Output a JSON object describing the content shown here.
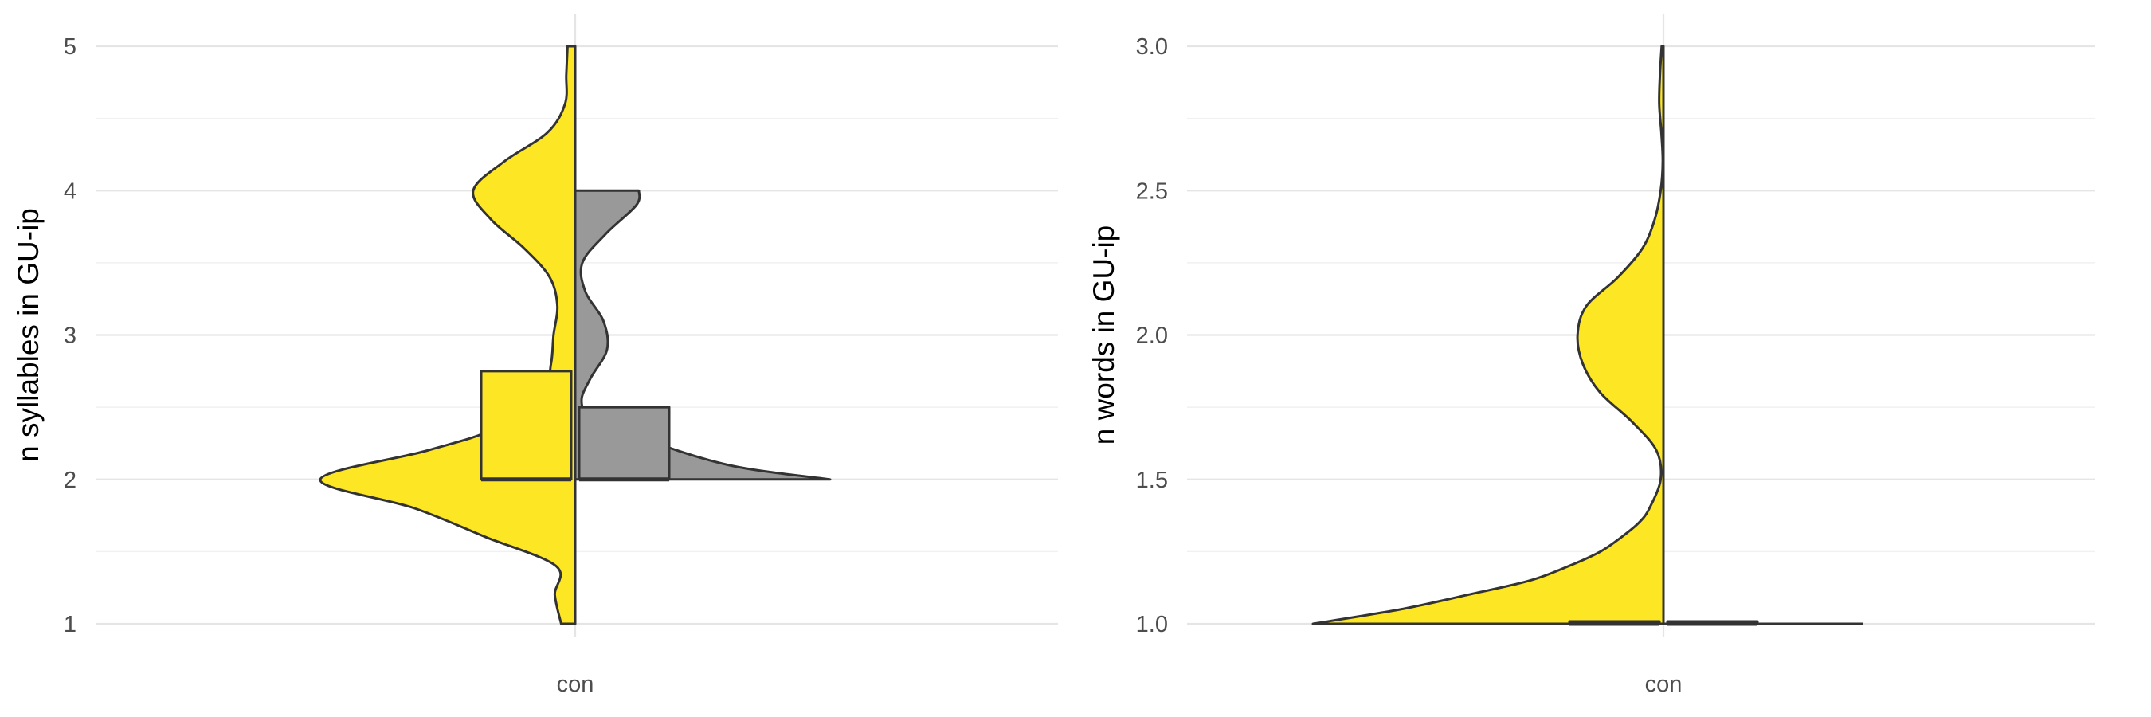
{
  "colors": {
    "yellow": "#FDE725",
    "gray": "#999999",
    "outline": "#333333"
  },
  "chart_data": [
    {
      "type": "violin",
      "title": "",
      "xlabel": "",
      "ylabel": "n syllables in GU-ip",
      "categories": [
        "con"
      ],
      "ylim": [
        1,
        5
      ],
      "yticks": [
        "1",
        "2",
        "3",
        "4",
        "5"
      ],
      "grid": true,
      "legend": "none",
      "series": [
        {
          "side": "left",
          "color": "yellow",
          "density": [
            [
              1.0,
              0.055
            ],
            [
              1.2,
              0.08
            ],
            [
              1.4,
              0.075
            ],
            [
              1.6,
              0.35
            ],
            [
              1.8,
              0.63
            ],
            [
              2.0,
              1.0
            ],
            [
              2.2,
              0.58
            ],
            [
              2.35,
              0.32
            ],
            [
              2.6,
              0.13
            ],
            [
              2.8,
              0.095
            ],
            [
              3.0,
              0.085
            ],
            [
              3.2,
              0.07
            ],
            [
              3.4,
              0.1
            ],
            [
              3.6,
              0.2
            ],
            [
              3.8,
              0.33
            ],
            [
              4.0,
              0.4
            ],
            [
              4.2,
              0.28
            ],
            [
              4.4,
              0.11
            ],
            [
              4.6,
              0.04
            ],
            [
              4.8,
              0.035
            ],
            [
              5.0,
              0.03
            ]
          ],
          "box": {
            "q1": 2,
            "median": 2,
            "q3": 2.75
          }
        },
        {
          "side": "right",
          "color": "gray",
          "density": [
            [
              2.0,
              1.0
            ],
            [
              2.1,
              0.6
            ],
            [
              2.3,
              0.24
            ],
            [
              2.45,
              0.06
            ],
            [
              2.55,
              0.025
            ],
            [
              2.7,
              0.06
            ],
            [
              2.9,
              0.125
            ],
            [
              3.1,
              0.11
            ],
            [
              3.3,
              0.04
            ],
            [
              3.5,
              0.028
            ],
            [
              3.7,
              0.12
            ],
            [
              3.9,
              0.24
            ],
            [
              4.0,
              0.25
            ]
          ],
          "box": {
            "q1": 2,
            "median": 2,
            "q3": 2.5
          }
        }
      ]
    },
    {
      "type": "violin",
      "title": "",
      "xlabel": "",
      "ylabel": "n words in GU-ip",
      "categories": [
        "con"
      ],
      "ylim": [
        1,
        3
      ],
      "yticks": [
        "1.0",
        "1.5",
        "2.0",
        "2.5",
        "3.0"
      ],
      "grid": true,
      "legend": "none",
      "series": [
        {
          "side": "left",
          "color": "yellow",
          "density": [
            [
              1.0,
              1.0
            ],
            [
              1.05,
              0.75
            ],
            [
              1.1,
              0.56
            ],
            [
              1.15,
              0.38
            ],
            [
              1.2,
              0.27
            ],
            [
              1.25,
              0.18
            ],
            [
              1.3,
              0.12
            ],
            [
              1.35,
              0.07
            ],
            [
              1.4,
              0.04
            ],
            [
              1.5,
              0.008
            ],
            [
              1.6,
              0.02
            ],
            [
              1.7,
              0.09
            ],
            [
              1.8,
              0.18
            ],
            [
              1.9,
              0.23
            ],
            [
              2.0,
              0.245
            ],
            [
              2.1,
              0.22
            ],
            [
              2.2,
              0.13
            ],
            [
              2.3,
              0.06
            ],
            [
              2.4,
              0.025
            ],
            [
              2.5,
              0.008
            ],
            [
              2.6,
              0.002
            ],
            [
              2.7,
              0.006
            ],
            [
              2.8,
              0.012
            ],
            [
              2.9,
              0.01
            ],
            [
              3.0,
              0.005
            ]
          ],
          "box": {
            "q1": 1,
            "median": 1,
            "q3": 1
          }
        },
        {
          "side": "right",
          "color": "gray",
          "density": [
            [
              1.0,
              0.57
            ]
          ],
          "box": {
            "q1": 1,
            "median": 1,
            "q3": 1
          }
        }
      ]
    }
  ]
}
